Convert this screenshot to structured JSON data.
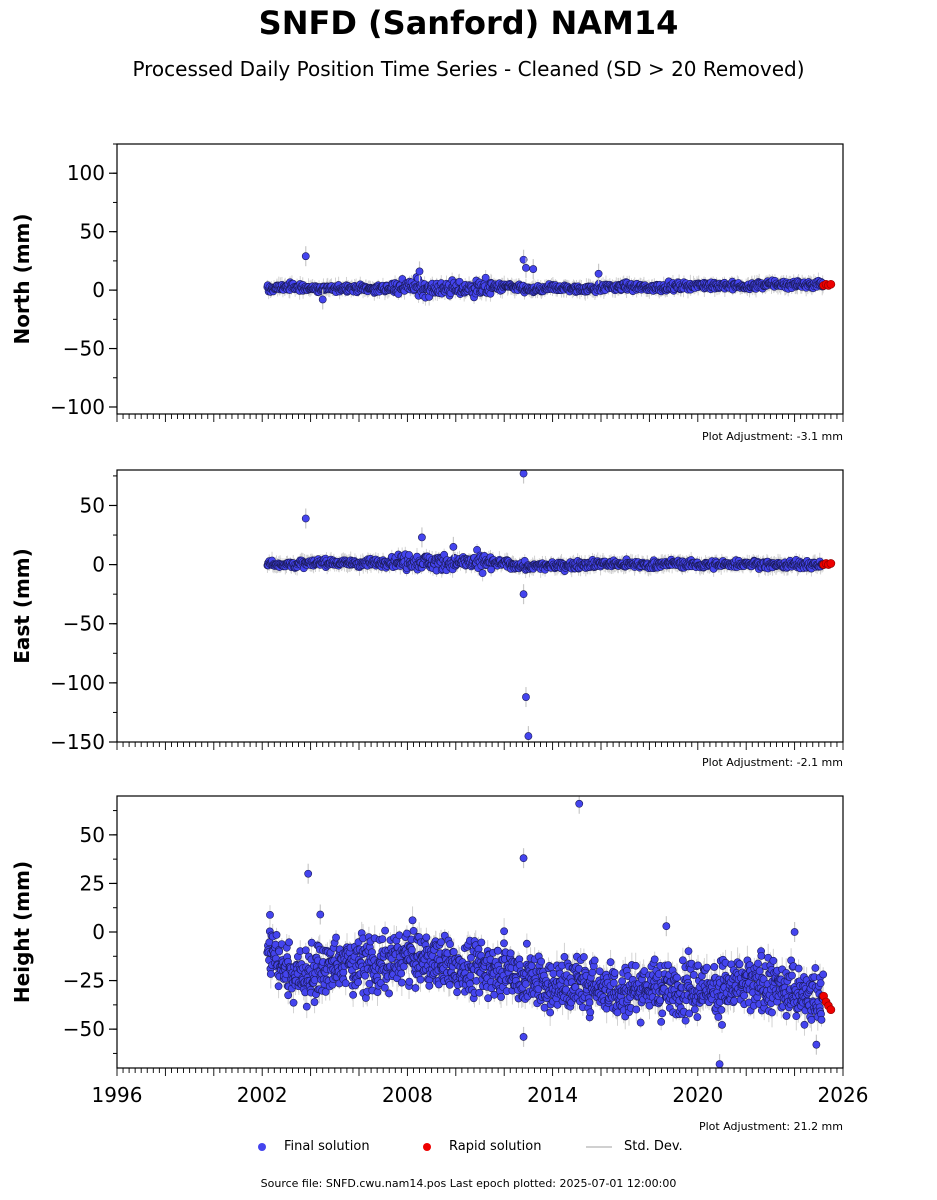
{
  "title": "SNFD (Sanford) NAM14",
  "subtitle": "Processed Daily Position Time Series - Cleaned (SD > 20 Removed)",
  "legend": {
    "final": "Final solution",
    "rapid": "Rapid solution",
    "std": "Std. Dev."
  },
  "footer": "Source file: SNFD.cwu.nam14.pos  Last epoch plotted: 2025-07-01 12:00:00",
  "colors": {
    "final": "#4444ee",
    "rapid": "#ee0000",
    "std": "#c8c8c8",
    "axis": "#000000"
  },
  "chart_data": [
    {
      "type": "scatter",
      "ylabel": "North (mm)",
      "xlim": [
        1996,
        2026
      ],
      "ylim": [
        -106,
        125
      ],
      "yticks": [
        -100,
        -50,
        0,
        50,
        100
      ],
      "xticks": [],
      "adjustment": "Plot Adjustment: -3.1 mm",
      "series": [
        {
          "name": "Final solution",
          "x": [
            2002.3,
            2003.0,
            2003.8,
            2004.4,
            2005.5,
            2007.0,
            2008.0,
            2009.0,
            2010.0,
            2011.0,
            2012.0,
            2012.8,
            2013.2,
            2014.0,
            2015.0,
            2016.0,
            2017.0,
            2018.0,
            2019.0,
            2020.0,
            2021.0,
            2022.0,
            2023.0,
            2024.0,
            2025.0
          ],
          "y": [
            1,
            3,
            2,
            1,
            2,
            1,
            3,
            2,
            1,
            2,
            3,
            1,
            0,
            2,
            1,
            2,
            3,
            2,
            3,
            4,
            4,
            3,
            5,
            5,
            5
          ]
        },
        {
          "name": "Rapid solution",
          "x": [
            2025.2,
            2025.3,
            2025.4,
            2025.5
          ],
          "y": [
            4,
            5,
            4,
            5
          ]
        }
      ],
      "outliers": {
        "x": [
          2003.8,
          2008.5,
          2012.8,
          2012.9,
          2013.2,
          2015.9,
          2004.5
        ],
        "y": [
          29,
          16,
          26,
          19,
          18,
          14,
          -8
        ]
      }
    },
    {
      "type": "scatter",
      "ylabel": "East (mm)",
      "xlim": [
        1996,
        2026
      ],
      "ylim": [
        -150,
        80
      ],
      "yticks": [
        -150,
        -100,
        -50,
        0,
        50
      ],
      "xticks": [],
      "adjustment": "Plot Adjustment: -2.1 mm",
      "series": [
        {
          "name": "Final solution",
          "x": [
            2002.3,
            2003.0,
            2004.0,
            2005.0,
            2006.0,
            2007.0,
            2008.0,
            2009.0,
            2010.0,
            2011.0,
            2012.0,
            2013.0,
            2014.0,
            2015.0,
            2016.0,
            2017.0,
            2018.0,
            2019.0,
            2020.0,
            2021.0,
            2022.0,
            2023.0,
            2024.0,
            2025.0
          ],
          "y": [
            1,
            0,
            1,
            2,
            1,
            2,
            3,
            2,
            1,
            2,
            1,
            -2,
            -1,
            0,
            1,
            0,
            0,
            1,
            0,
            0,
            1,
            0,
            0,
            0
          ]
        },
        {
          "name": "Rapid solution",
          "x": [
            2025.2,
            2025.3,
            2025.4,
            2025.5
          ],
          "y": [
            0,
            1,
            0,
            1
          ]
        }
      ],
      "outliers": {
        "x": [
          2003.8,
          2008.6,
          2009.9,
          2012.8,
          2012.8,
          2012.9,
          2013.0
        ],
        "y": [
          39,
          23,
          15,
          77,
          -25,
          -112,
          -145
        ]
      }
    },
    {
      "type": "scatter",
      "ylabel": "Height (mm)",
      "xlim": [
        1996,
        2026
      ],
      "ylim": [
        -70,
        70
      ],
      "yticks": [
        -50,
        -25,
        0,
        25,
        50
      ],
      "xticks": [
        "1996",
        "2002",
        "2008",
        "2014",
        "2020",
        "2026"
      ],
      "adjustment": "Plot Adjustment: 21.2 mm",
      "series": [
        {
          "name": "Final solution",
          "x": [
            2002.3,
            2003.0,
            2004.0,
            2005.0,
            2006.0,
            2007.0,
            2008.0,
            2009.0,
            2010.0,
            2011.0,
            2012.0,
            2013.0,
            2014.0,
            2015.0,
            2016.0,
            2017.0,
            2018.0,
            2019.0,
            2020.0,
            2021.0,
            2022.0,
            2023.0,
            2024.0,
            2025.0
          ],
          "y": [
            -8,
            -20,
            -22,
            -18,
            -15,
            -18,
            -12,
            -15,
            -18,
            -20,
            -18,
            -25,
            -28,
            -27,
            -28,
            -30,
            -28,
            -30,
            -30,
            -28,
            -28,
            -28,
            -30,
            -35
          ]
        },
        {
          "name": "Rapid solution",
          "x": [
            2025.2,
            2025.3,
            2025.4,
            2025.5
          ],
          "y": [
            -33,
            -36,
            -38,
            -40
          ]
        }
      ],
      "outliers": {
        "x": [
          2003.9,
          2004.4,
          2012.8,
          2012.8,
          2015.1,
          2018.7,
          2020.9,
          2024.0,
          2024.9
        ],
        "y": [
          30,
          9,
          38,
          -54,
          66,
          3,
          -68,
          0,
          -58
        ]
      }
    }
  ]
}
